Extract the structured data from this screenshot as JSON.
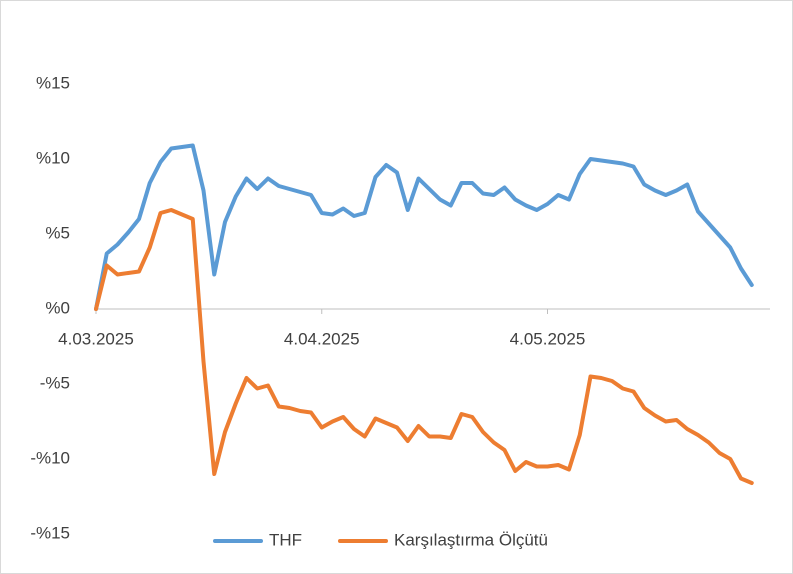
{
  "chart_data": {
    "type": "line",
    "categories": [
      "4.03.2025",
      null,
      null,
      null,
      null,
      null,
      null,
      null,
      null,
      null,
      null,
      null,
      null,
      null,
      null,
      null,
      null,
      null,
      null,
      null,
      null,
      "4.04.2025",
      null,
      null,
      null,
      null,
      null,
      null,
      null,
      null,
      null,
      null,
      null,
      null,
      null,
      null,
      null,
      null,
      null,
      null,
      null,
      null,
      "4.05.2025",
      null,
      null,
      null,
      null,
      null,
      null,
      null,
      null,
      null,
      null,
      null,
      null,
      null,
      null,
      null,
      null,
      null,
      null,
      null
    ],
    "series": [
      {
        "name": "THF",
        "color": "#5b9bd5",
        "values": [
          0,
          3.7,
          4.3,
          5.1,
          6.0,
          8.4,
          9.8,
          10.7,
          10.8,
          10.9,
          7.9,
          2.3,
          5.8,
          7.5,
          8.7,
          8.0,
          8.7,
          8.2,
          8.0,
          7.8,
          7.6,
          6.4,
          6.3,
          6.7,
          6.2,
          6.4,
          8.8,
          9.6,
          9.1,
          6.6,
          8.7,
          8.0,
          7.3,
          6.9,
          8.4,
          8.4,
          7.7,
          7.6,
          8.1,
          7.3,
          6.9,
          6.6,
          7.0,
          7.6,
          7.3,
          9.0,
          10.0,
          9.9,
          9.8,
          9.7,
          9.5,
          8.3,
          7.9,
          7.6,
          7.9,
          8.3,
          6.5,
          5.7,
          4.9,
          4.1,
          2.7,
          1.6
        ]
      },
      {
        "name": "Karşılaştırma Ölçütü",
        "color": "#ed7d31",
        "values": [
          0,
          2.9,
          2.3,
          2.4,
          2.5,
          4.1,
          6.4,
          6.6,
          6.3,
          6.0,
          -3.5,
          -11.0,
          -8.2,
          -6.3,
          -4.6,
          -5.3,
          -5.1,
          -6.5,
          -6.6,
          -6.8,
          -6.9,
          -7.9,
          -7.5,
          -7.2,
          -8.0,
          -8.5,
          -7.3,
          -7.6,
          -7.9,
          -8.8,
          -7.8,
          -8.5,
          -8.5,
          -8.6,
          -7.0,
          -7.2,
          -8.2,
          -8.9,
          -9.4,
          -10.8,
          -10.2,
          -10.5,
          -10.5,
          -10.4,
          -10.7,
          -8.4,
          -4.5,
          -4.6,
          -4.8,
          -5.3,
          -5.5,
          -6.6,
          -7.1,
          -7.5,
          -7.4,
          -8.0,
          -8.4,
          -8.9,
          -9.6,
          -10.0,
          -11.3,
          -11.6
        ]
      }
    ],
    "ylim": [
      -15,
      15
    ],
    "yticks": [
      {
        "value": -15,
        "label": "-%15"
      },
      {
        "value": -10,
        "label": "-%10"
      },
      {
        "value": -5,
        "label": "-%5"
      },
      {
        "value": 0,
        "label": "%0"
      },
      {
        "value": 5,
        "label": "%5"
      },
      {
        "value": 10,
        "label": "%10"
      },
      {
        "value": 15,
        "label": "%15"
      }
    ],
    "legend": "bottom"
  }
}
